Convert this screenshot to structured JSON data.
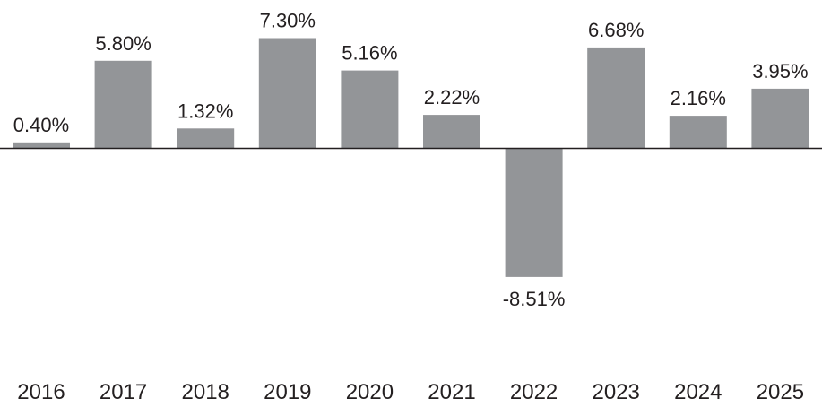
{
  "chart_data": {
    "type": "bar",
    "title": "",
    "xlabel": "",
    "ylabel": "",
    "categories": [
      "2016",
      "2017",
      "2018",
      "2019",
      "2020",
      "2021",
      "2022",
      "2023",
      "2024",
      "2025"
    ],
    "values": [
      0.4,
      5.8,
      1.32,
      7.3,
      5.16,
      2.22,
      -8.51,
      6.68,
      2.16,
      3.95
    ],
    "value_labels": [
      "0.40%",
      "5.80%",
      "1.32%",
      "7.30%",
      "5.16%",
      "2.22%",
      "-8.51%",
      "6.68%",
      "2.16%",
      "3.95%"
    ],
    "ylim": [
      -15,
      7.3
    ],
    "grid": false,
    "legend": "none",
    "colors": {
      "bar": "#939598",
      "axis": "#231f20",
      "text": "#231f20"
    }
  }
}
